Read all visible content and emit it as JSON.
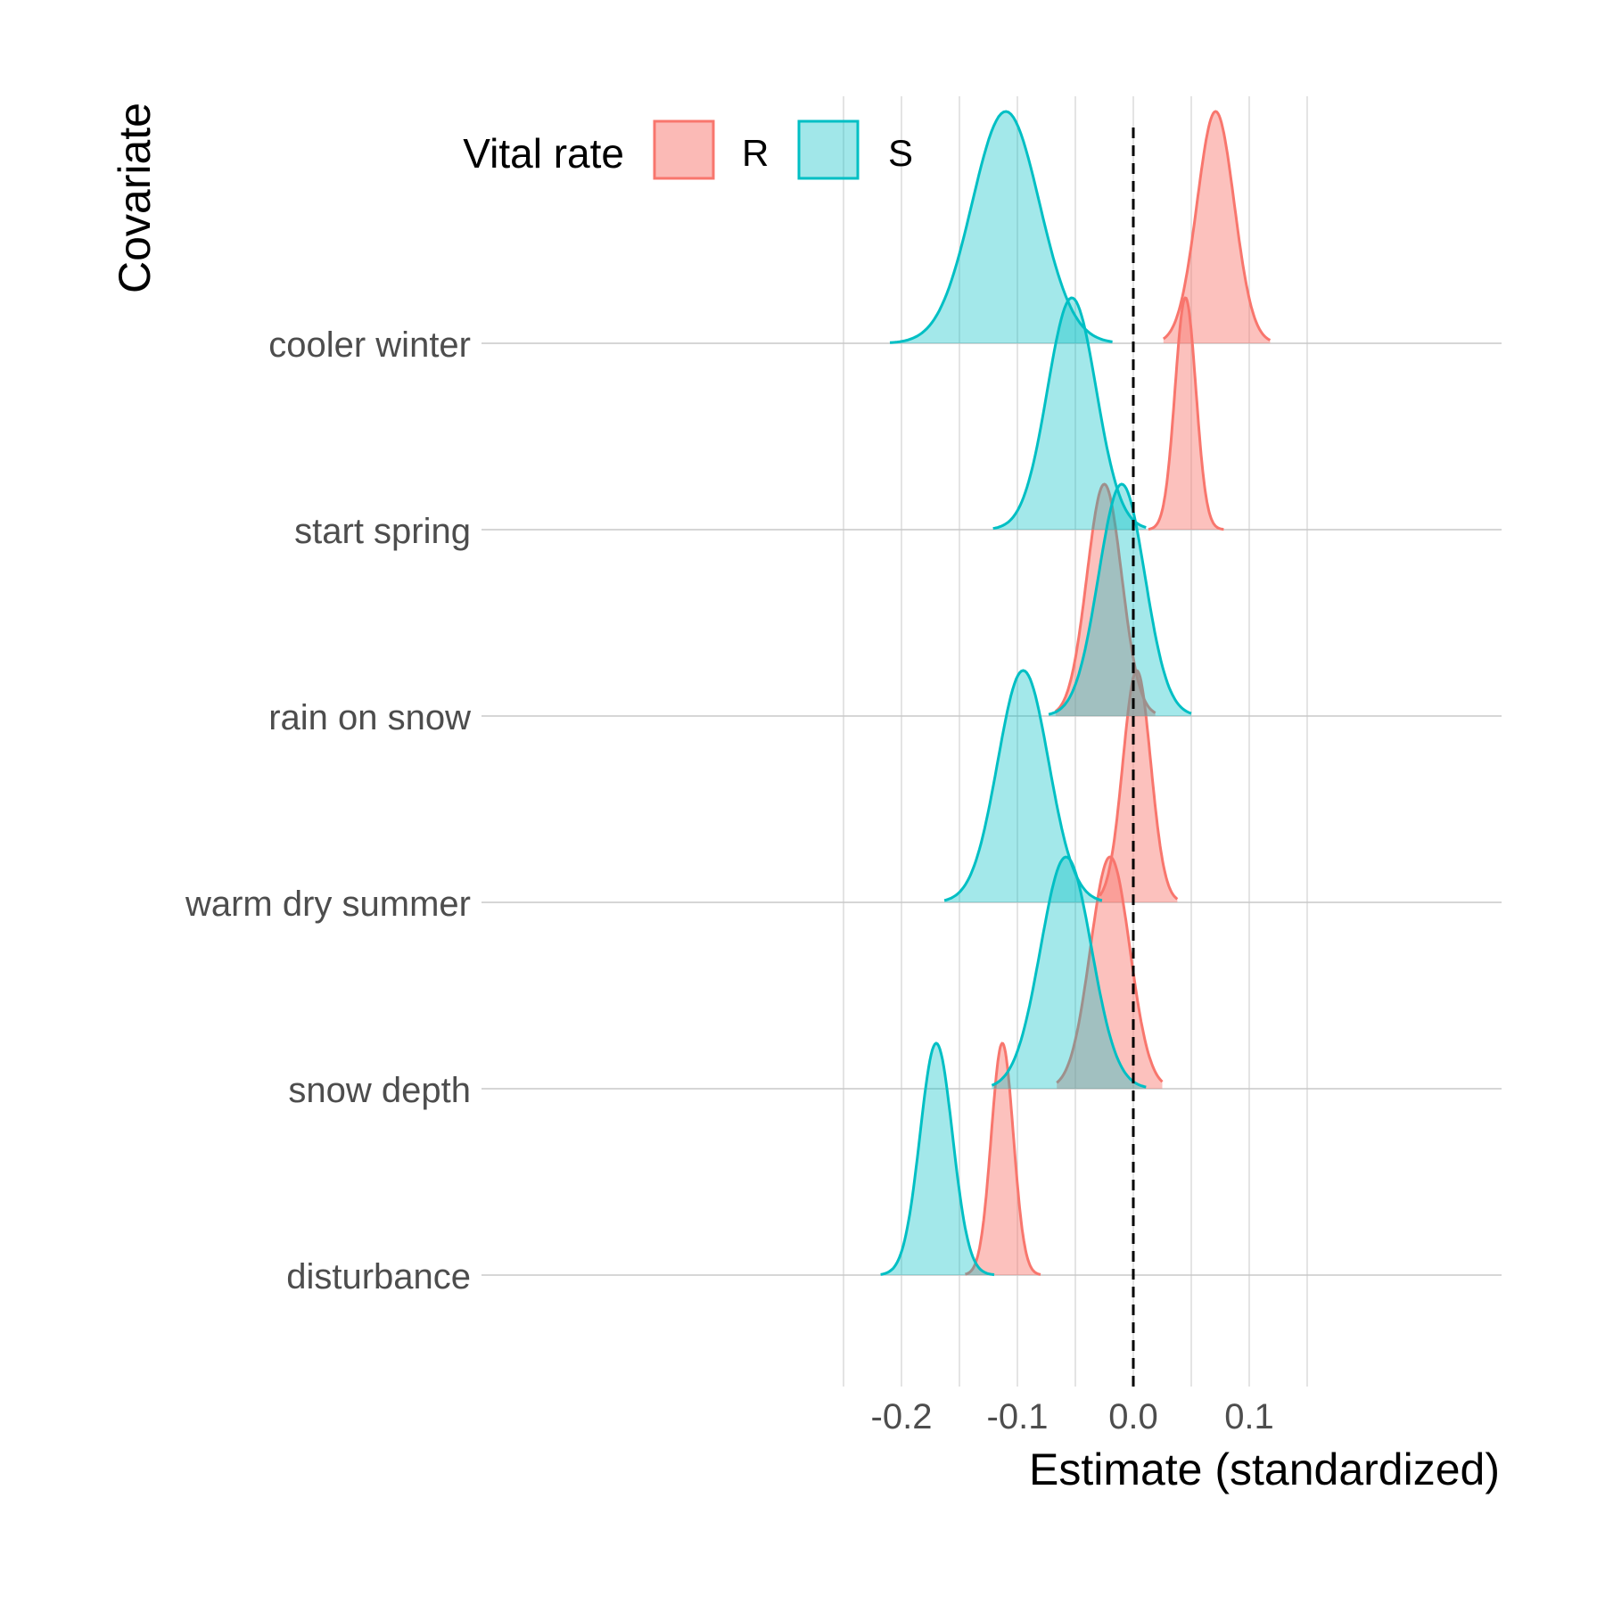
{
  "chart_data": {
    "type": "ridgeline",
    "xlabel": "Estimate (standardized)",
    "ylabel": "Covariate",
    "xlim": [
      -0.27,
      0.16
    ],
    "x_ticks": [
      "-0.2",
      "-0.1",
      "0.0",
      "0.1"
    ],
    "reference_line": 0.0,
    "categories": [
      "disturbance",
      "snow depth",
      "warm dry summer",
      "rain on snow",
      "start spring",
      "cooler winter"
    ],
    "legend": {
      "title": "Vital rate",
      "position": "top",
      "items": [
        {
          "label": "R",
          "color": "#F8766D"
        },
        {
          "label": "S",
          "color": "#00BFC4"
        }
      ]
    },
    "series": [
      {
        "label": "R",
        "color": "#F8766D",
        "distributions": [
          {
            "category": "disturbance",
            "peak": -0.113,
            "sd": 0.0095,
            "range": [
              -0.145,
              -0.08
            ]
          },
          {
            "category": "snow depth",
            "peak": -0.02,
            "sd": 0.017,
            "range": [
              -0.066,
              0.025
            ]
          },
          {
            "category": "warm dry summer",
            "peak": 0.003,
            "sd": 0.012,
            "range": [
              -0.029,
              0.038
            ]
          },
          {
            "category": "rain on snow",
            "peak": -0.025,
            "sd": 0.015,
            "range": [
              -0.067,
              0.019
            ]
          },
          {
            "category": "start spring",
            "peak": 0.045,
            "sd": 0.009,
            "range": [
              0.013,
              0.078
            ]
          },
          {
            "category": "cooler winter",
            "peak": 0.071,
            "sd": 0.016,
            "range": [
              0.026,
              0.118
            ]
          }
        ]
      },
      {
        "label": "S",
        "color": "#00BFC4",
        "distributions": [
          {
            "category": "disturbance",
            "peak": -0.17,
            "sd": 0.014,
            "range": [
              -0.218,
              -0.12
            ]
          },
          {
            "category": "snow depth",
            "peak": -0.058,
            "sd": 0.022,
            "range": [
              -0.122,
              0.011
            ]
          },
          {
            "category": "warm dry summer",
            "peak": -0.095,
            "sd": 0.022,
            "range": [
              -0.163,
              -0.027
            ]
          },
          {
            "category": "rain on snow",
            "peak": -0.01,
            "sd": 0.02,
            "range": [
              -0.073,
              0.05
            ]
          },
          {
            "category": "start spring",
            "peak": -0.053,
            "sd": 0.021,
            "range": [
              -0.121,
              0.011
            ]
          },
          {
            "category": "cooler winter",
            "peak": -0.11,
            "sd": 0.029,
            "range": [
              -0.21,
              -0.018
            ]
          }
        ]
      }
    ]
  }
}
